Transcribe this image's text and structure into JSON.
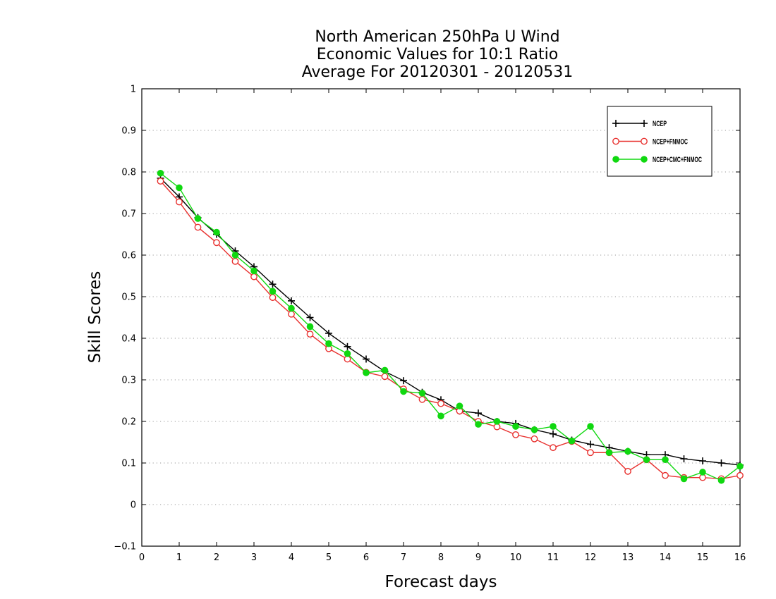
{
  "chart_data": {
    "type": "line",
    "title": [
      "North American 250hPa U Wind",
      "Economic Values for 10:1 Ratio",
      "Average For 20120301 - 20120531"
    ],
    "xlabel": "Forecast days",
    "ylabel": "Skill Scores",
    "xlim": [
      0,
      16
    ],
    "ylim": [
      -0.1,
      1
    ],
    "xticks": [
      "0",
      "1",
      "2",
      "3",
      "4",
      "5",
      "6",
      "7",
      "8",
      "9",
      "10",
      "11",
      "12",
      "13",
      "14",
      "15",
      "16"
    ],
    "yticks": [
      "−0.1",
      "0",
      "0.1",
      "0.2",
      "0.3",
      "0.4",
      "0.5",
      "0.6",
      "0.7",
      "0.8",
      "0.9",
      "1"
    ],
    "grid": "horizontal dotted",
    "legend_position": "top-right",
    "x": [
      0.5,
      1,
      1.5,
      2,
      2.5,
      3,
      3.5,
      4,
      4.5,
      5,
      5.5,
      6,
      6.5,
      7,
      7.5,
      8,
      8.5,
      9,
      9.5,
      10,
      10.5,
      11,
      11.5,
      12,
      12.5,
      13,
      13.5,
      14,
      14.5,
      15,
      15.5,
      16
    ],
    "series": [
      {
        "name": "NCEP",
        "color": "#000000",
        "marker": "plus",
        "values": [
          0.785,
          0.74,
          0.69,
          0.65,
          0.61,
          0.572,
          0.53,
          0.49,
          0.45,
          0.412,
          0.38,
          0.35,
          0.32,
          0.298,
          0.27,
          0.252,
          0.225,
          0.22,
          0.2,
          0.195,
          0.18,
          0.17,
          0.155,
          0.145,
          0.137,
          0.128,
          0.12,
          0.12,
          0.11,
          0.105,
          0.1,
          0.095
        ]
      },
      {
        "name": "NCEP+FNMOC",
        "color": "#e8312f",
        "marker": "open-circle",
        "values": [
          0.778,
          0.728,
          0.667,
          0.63,
          0.585,
          0.548,
          0.498,
          0.458,
          0.41,
          0.375,
          0.35,
          0.318,
          0.308,
          0.278,
          0.253,
          0.243,
          0.225,
          0.2,
          0.187,
          0.168,
          0.158,
          0.137,
          0.152,
          0.125,
          0.125,
          0.08,
          0.108,
          0.07,
          0.065,
          0.065,
          0.062,
          0.07
        ]
      },
      {
        "name": "NCEP+CMC+FNMOC",
        "color": "#10d810",
        "marker": "filled-circle",
        "values": [
          0.797,
          0.762,
          0.688,
          0.655,
          0.6,
          0.562,
          0.513,
          0.472,
          0.428,
          0.387,
          0.363,
          0.317,
          0.323,
          0.272,
          0.268,
          0.213,
          0.237,
          0.193,
          0.2,
          0.188,
          0.18,
          0.188,
          0.153,
          0.188,
          0.125,
          0.128,
          0.108,
          0.108,
          0.062,
          0.078,
          0.058,
          0.092
        ]
      }
    ]
  }
}
